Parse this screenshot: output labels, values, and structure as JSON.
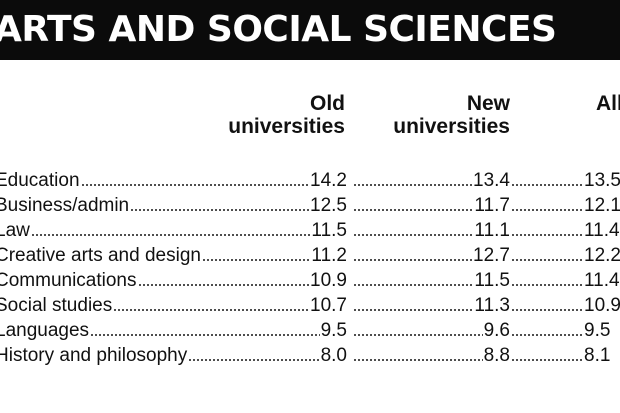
{
  "banner": {
    "title": "ARTS AND SOCIAL SCIENCES"
  },
  "columns": [
    {
      "line1": "Old",
      "line2": "universities"
    },
    {
      "line1": "New",
      "line2": "universities"
    },
    {
      "line1": "All",
      "line2": ""
    }
  ],
  "rows": [
    {
      "subject": "Education",
      "old": "14.2",
      "new": "13.4",
      "all": "13.5"
    },
    {
      "subject": "Business/admin",
      "old": "12.5",
      "new": "11.7",
      "all": "12.1"
    },
    {
      "subject": "Law",
      "old": "11.5",
      "new": "11.1",
      "all": "11.4"
    },
    {
      "subject": "Creative arts and design",
      "old": "11.2",
      "new": "12.7",
      "all": "12.2"
    },
    {
      "subject": "Communications",
      "old": "10.9",
      "new": "11.5",
      "all": "11.4"
    },
    {
      "subject": "Social studies",
      "old": "10.7",
      "new": "11.3",
      "all": "10.9"
    },
    {
      "subject": "Languages",
      "old": "9.5",
      "new": "9.6",
      "all": "9.5"
    },
    {
      "subject": "History and philosophy",
      "old": "8.0",
      "new": "8.8",
      "all": "8.1"
    }
  ]
}
